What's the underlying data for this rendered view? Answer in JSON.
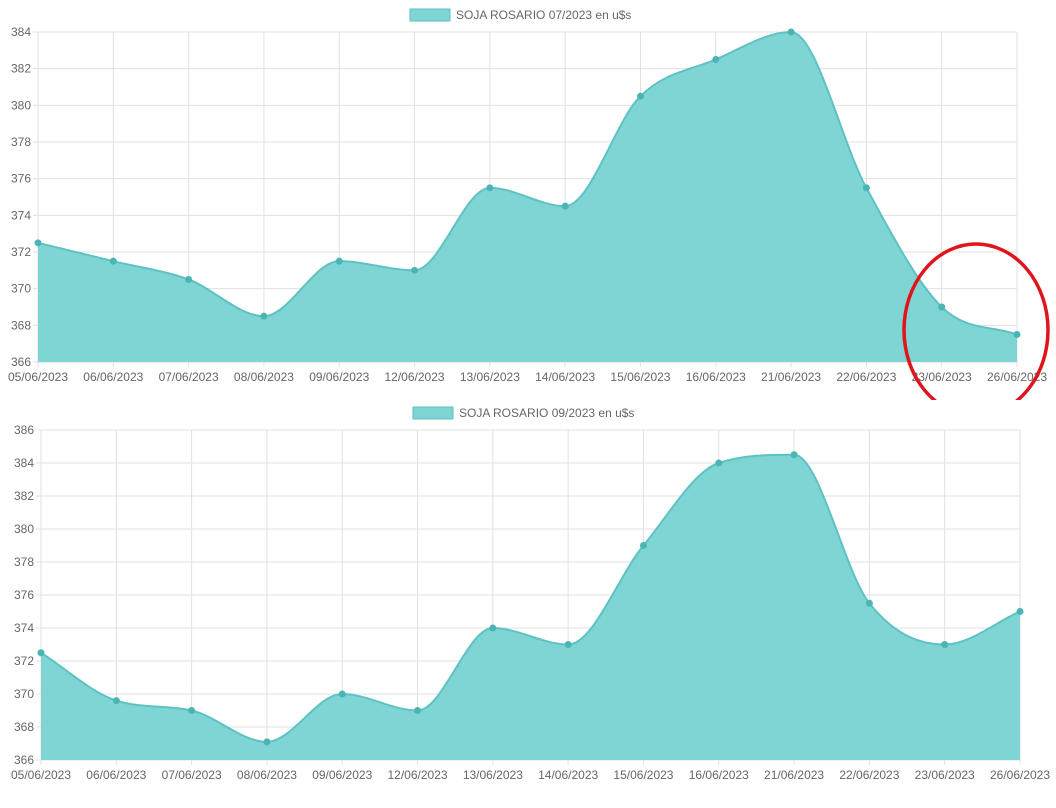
{
  "colors": {
    "fill": "#7fd4d4",
    "line": "#5fc2c2",
    "point": "#4bb5b5",
    "grid": "#e1e1e1",
    "text": "#666666",
    "annotation": "#e0141c"
  },
  "chart_data": [
    {
      "type": "area",
      "legend": "SOJA ROSARIO 07/2023 en u$s",
      "legend_position": "top-center",
      "grid": true,
      "categories": [
        "05/06/2023",
        "06/06/2023",
        "07/06/2023",
        "08/06/2023",
        "09/06/2023",
        "12/06/2023",
        "13/06/2023",
        "14/06/2023",
        "15/06/2023",
        "16/06/2023",
        "21/06/2023",
        "22/06/2023",
        "23/06/2023",
        "26/06/2023"
      ],
      "series": [
        {
          "name": "SOJA ROSARIO 07/2023 en u$s",
          "values": [
            372.5,
            371.5,
            370.5,
            368.5,
            371.5,
            371,
            375.5,
            374.5,
            380.5,
            382.5,
            384,
            375.5,
            369,
            367.5
          ]
        }
      ],
      "ylim": [
        366,
        384
      ],
      "yticks": [
        366,
        368,
        370,
        372,
        374,
        376,
        378,
        380,
        382,
        384
      ],
      "annotation": "red-circle-around-last-two-points"
    },
    {
      "type": "area",
      "legend": "SOJA ROSARIO 09/2023 en u$s",
      "legend_position": "top-center",
      "grid": true,
      "categories": [
        "05/06/2023",
        "06/06/2023",
        "07/06/2023",
        "08/06/2023",
        "09/06/2023",
        "12/06/2023",
        "13/06/2023",
        "14/06/2023",
        "15/06/2023",
        "16/06/2023",
        "21/06/2023",
        "22/06/2023",
        "23/06/2023",
        "26/06/2023"
      ],
      "series": [
        {
          "name": "SOJA ROSARIO 09/2023 en u$s",
          "values": [
            372.5,
            369.6,
            369,
            367.1,
            370,
            369,
            374,
            373,
            379,
            384,
            384.5,
            375.5,
            373,
            375
          ]
        }
      ],
      "ylim": [
        366,
        386
      ],
      "yticks": [
        366,
        368,
        370,
        372,
        374,
        376,
        378,
        380,
        382,
        384,
        386
      ]
    }
  ]
}
